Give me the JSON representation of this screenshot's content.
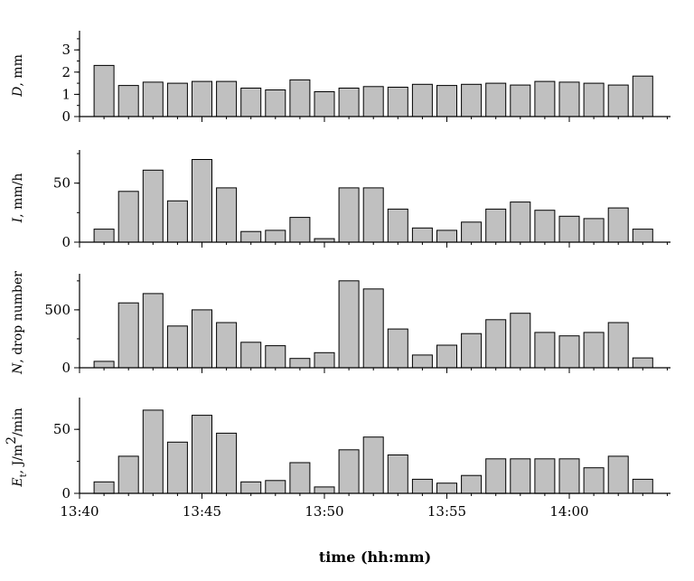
{
  "chart_data": [
    {
      "type": "bar",
      "ylabel": "D, mm",
      "ylim": [
        0,
        3.7
      ],
      "yticks": [
        "0",
        "1",
        "2",
        "3"
      ],
      "tick_values": [
        0,
        1,
        2,
        3
      ],
      "x": [
        "13:41",
        "13:42",
        "13:43",
        "13:44",
        "13:45",
        "13:46",
        "13:47",
        "13:48",
        "13:49",
        "13:50",
        "13:51",
        "13:52",
        "13:53",
        "13:54",
        "13:55",
        "13:56",
        "13:57",
        "13:58",
        "13:59",
        "14:00",
        "14:01",
        "14:02",
        "14:03"
      ],
      "values": [
        2.3,
        1.4,
        1.55,
        1.5,
        1.58,
        1.58,
        1.28,
        1.2,
        1.65,
        1.12,
        1.28,
        1.35,
        1.32,
        1.45,
        1.4,
        1.45,
        1.5,
        1.42,
        1.58,
        1.55,
        1.5,
        1.42,
        1.82
      ]
    },
    {
      "type": "bar",
      "ylabel": "I, mm/h",
      "ylim": [
        0,
        75
      ],
      "yticks": [
        "0",
        "50"
      ],
      "tick_values": [
        0,
        50
      ],
      "x": [
        "13:41",
        "13:42",
        "13:43",
        "13:44",
        "13:45",
        "13:46",
        "13:47",
        "13:48",
        "13:49",
        "13:50",
        "13:51",
        "13:52",
        "13:53",
        "13:54",
        "13:55",
        "13:56",
        "13:57",
        "13:58",
        "13:59",
        "14:00",
        "14:01",
        "14:02",
        "14:03"
      ],
      "values": [
        11,
        43,
        61,
        35,
        70,
        46,
        9,
        10,
        21,
        3,
        46,
        46,
        28,
        12,
        10,
        17,
        28,
        34,
        27,
        22,
        20,
        29,
        11
      ]
    },
    {
      "type": "bar",
      "ylabel": "N,  drop number",
      "ylim": [
        0,
        780
      ],
      "yticks": [
        "0",
        "500"
      ],
      "tick_values": [
        0,
        500
      ],
      "x": [
        "13:41",
        "13:42",
        "13:43",
        "13:44",
        "13:45",
        "13:46",
        "13:47",
        "13:48",
        "13:49",
        "13:50",
        "13:51",
        "13:52",
        "13:53",
        "13:54",
        "13:55",
        "13:56",
        "13:57",
        "13:58",
        "13:59",
        "14:00",
        "14:01",
        "14:02",
        "14:03"
      ],
      "values": [
        55,
        560,
        640,
        360,
        500,
        390,
        220,
        190,
        80,
        130,
        750,
        680,
        335,
        110,
        195,
        295,
        415,
        470,
        305,
        275,
        305,
        390,
        85
      ]
    },
    {
      "type": "bar",
      "ylabel": "E, J/m",
      "ylabel_subscript": "t",
      "ylabel_superscript": "2",
      "ylabel_suffix": "/min",
      "ylim": [
        0,
        72
      ],
      "yticks": [
        "0",
        "50"
      ],
      "tick_values": [
        0,
        50
      ],
      "xlabel": "time (hh:mm)",
      "xticks": [
        "13:40",
        "13:45",
        "13:50",
        "13:55",
        "14:00"
      ],
      "x": [
        "13:41",
        "13:42",
        "13:43",
        "13:44",
        "13:45",
        "13:46",
        "13:47",
        "13:48",
        "13:49",
        "13:50",
        "13:51",
        "13:52",
        "13:53",
        "13:54",
        "13:55",
        "13:56",
        "13:57",
        "13:58",
        "13:59",
        "14:00",
        "14:01",
        "14:02",
        "14:03"
      ],
      "values": [
        9,
        29,
        65,
        40,
        61,
        47,
        9,
        10,
        24,
        5,
        34,
        44,
        30,
        11,
        8,
        14,
        27,
        27,
        27,
        27,
        20,
        29,
        11
      ]
    }
  ]
}
